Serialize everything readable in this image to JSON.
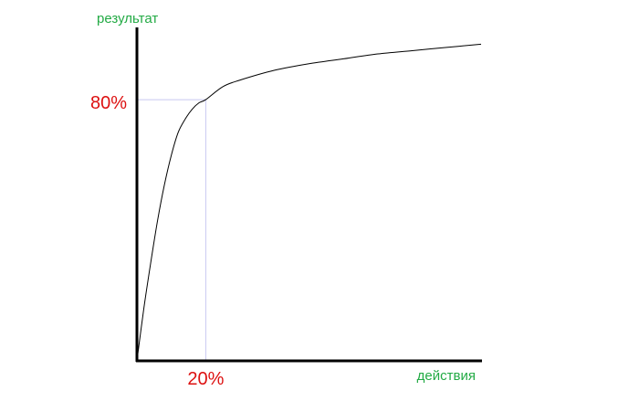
{
  "chart_data": {
    "type": "line",
    "title": "",
    "ylabel": "результат",
    "xlabel": "действия",
    "xlim": [
      0,
      100
    ],
    "ylim": [
      0,
      100
    ],
    "grid": false,
    "series": [
      {
        "x": [
          0,
          2,
          4,
          6,
          8,
          10,
          12,
          14,
          16,
          18,
          20,
          25,
          30,
          40,
          50,
          60,
          70,
          80,
          90,
          100
        ],
        "y": [
          0,
          16,
          30,
          43,
          54,
          63,
          70,
          74,
          77,
          79,
          80,
          84,
          86,
          89,
          91,
          92.5,
          94,
          95,
          96,
          97
        ]
      }
    ],
    "highlight": {
      "x": 20,
      "y": 80,
      "x_label": "20%",
      "y_label": "80%"
    }
  },
  "colors": {
    "axis": "#000000",
    "curve": "#000000",
    "guide": "#c8c8f0",
    "axis_label": "#22aa44",
    "highlight_label": "#dd1111"
  }
}
